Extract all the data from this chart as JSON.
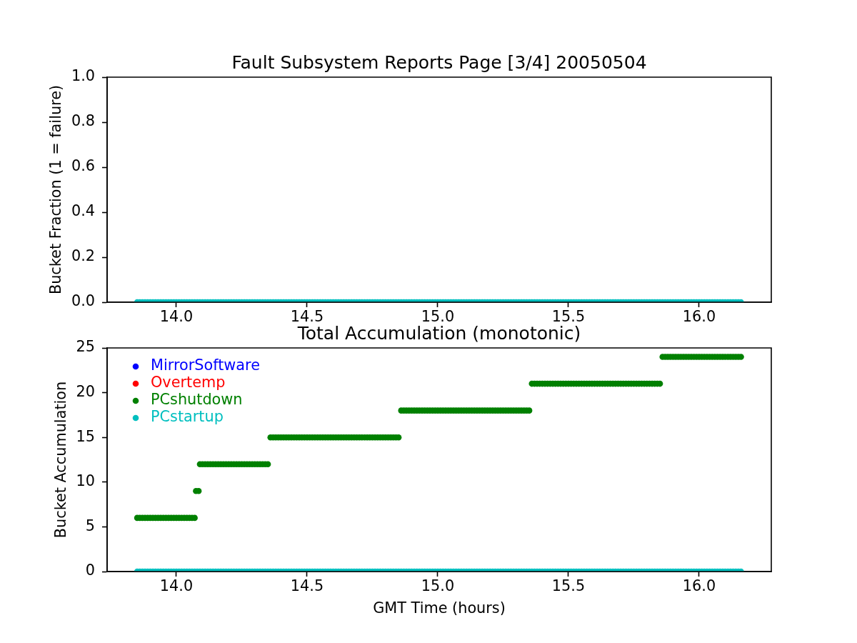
{
  "chart_data": [
    {
      "type": "scatter",
      "title": "Fault Subsystem Reports Page [3/4] 20050504",
      "ylabel": "Bucket Fraction (1 = failure)",
      "marker": "circle",
      "x": [
        13.85,
        13.86,
        13.87,
        13.88,
        13.89,
        13.9,
        13.91,
        13.92,
        13.93,
        13.94,
        13.95,
        13.96,
        13.97,
        13.98,
        13.99,
        14,
        14.01,
        14.02,
        14.03,
        14.04,
        14.05,
        14.06,
        14.07,
        14.08,
        14.09,
        14.1,
        14.11,
        14.12,
        14.13,
        14.14,
        14.15,
        14.16,
        14.17,
        14.18,
        14.19,
        14.2,
        14.21,
        14.22,
        14.23,
        14.24,
        14.25,
        14.26,
        14.27,
        14.28,
        14.29,
        14.3,
        14.31,
        14.32,
        14.33,
        14.34,
        14.35,
        14.36,
        14.37,
        14.38,
        14.39,
        14.4,
        14.41,
        14.42,
        14.43,
        14.44,
        14.45,
        14.46,
        14.47,
        14.48,
        14.49,
        14.5,
        14.51,
        14.52,
        14.53,
        14.54,
        14.55,
        14.56,
        14.57,
        14.58,
        14.59,
        14.6,
        14.61,
        14.62,
        14.63,
        14.64,
        14.65,
        14.66,
        14.67,
        14.68,
        14.69,
        14.7,
        14.71,
        14.72,
        14.73,
        14.74,
        14.75,
        14.76,
        14.77,
        14.78,
        14.79,
        14.8,
        14.81,
        14.82,
        14.83,
        14.84,
        14.85,
        14.86,
        14.87,
        14.88,
        14.89,
        14.9,
        14.91,
        14.92,
        14.93,
        14.94,
        14.95,
        14.96,
        14.97,
        14.98,
        14.99,
        15,
        15.01,
        15.02,
        15.03,
        15.04,
        15.05,
        15.06,
        15.07,
        15.08,
        15.09,
        15.1,
        15.11,
        15.12,
        15.13,
        15.14,
        15.15,
        15.16,
        15.17,
        15.18,
        15.19,
        15.2,
        15.21,
        15.22,
        15.23,
        15.24,
        15.25,
        15.26,
        15.27,
        15.28,
        15.29,
        15.3,
        15.31,
        15.32,
        15.33,
        15.34,
        15.35,
        15.36,
        15.37,
        15.38,
        15.39,
        15.4,
        15.41,
        15.42,
        15.43,
        15.44,
        15.45,
        15.46,
        15.47,
        15.48,
        15.49,
        15.5,
        15.51,
        15.52,
        15.53,
        15.54,
        15.55,
        15.56,
        15.57,
        15.58,
        15.59,
        15.6,
        15.61,
        15.62,
        15.63,
        15.64,
        15.65,
        15.66,
        15.67,
        15.68,
        15.69,
        15.7,
        15.71,
        15.72,
        15.73,
        15.74,
        15.75,
        15.76,
        15.77,
        15.78,
        15.79,
        15.8,
        15.81,
        15.82,
        15.83,
        15.84,
        15.85,
        15.86,
        15.87,
        15.88,
        15.89,
        15.9,
        15.91,
        15.92,
        15.93,
        15.94,
        15.95,
        15.96,
        15.97,
        15.98,
        15.99,
        16,
        16.01,
        16.02,
        16.03,
        16.04,
        16.05,
        16.06,
        16.07,
        16.08,
        16.09,
        16.1,
        16.11,
        16.12,
        16.13,
        16.14,
        16.15,
        16.16
      ],
      "xlim": [
        13.735,
        16.276
      ],
      "xticks": [
        {
          "value": 14,
          "label": "14.0"
        },
        {
          "value": 14.5,
          "label": "14.5"
        },
        {
          "value": 15,
          "label": "15.0"
        },
        {
          "value": 15.5,
          "label": "15.5"
        },
        {
          "value": 16,
          "label": "16.0"
        }
      ],
      "ylim": [
        0,
        1
      ],
      "yticks": [
        {
          "value": 0,
          "label": "0.0"
        },
        {
          "value": 0.2,
          "label": "0.2"
        },
        {
          "value": 0.4,
          "label": "0.4"
        },
        {
          "value": 0.6,
          "label": "0.6"
        },
        {
          "value": 0.8,
          "label": "0.8"
        },
        {
          "value": 1,
          "label": "1.0"
        }
      ],
      "series": [
        {
          "color": "#00bfbf",
          "values": [
            0,
            0,
            0,
            0,
            0,
            0,
            0,
            0,
            0,
            0,
            0,
            0,
            0,
            0,
            0,
            0,
            0,
            0,
            0,
            0,
            0,
            0,
            0,
            0,
            0,
            0,
            0,
            0,
            0,
            0,
            0,
            0,
            0,
            0,
            0,
            0,
            0,
            0,
            0,
            0,
            0,
            0,
            0,
            0,
            0,
            0,
            0,
            0,
            0,
            0,
            0,
            0,
            0,
            0,
            0,
            0,
            0,
            0,
            0,
            0,
            0,
            0,
            0,
            0,
            0,
            0,
            0,
            0,
            0,
            0,
            0,
            0,
            0,
            0,
            0,
            0,
            0,
            0,
            0,
            0,
            0,
            0,
            0,
            0,
            0,
            0,
            0,
            0,
            0,
            0,
            0,
            0,
            0,
            0,
            0,
            0,
            0,
            0,
            0,
            0,
            0,
            0,
            0,
            0,
            0,
            0,
            0,
            0,
            0,
            0,
            0,
            0,
            0,
            0,
            0,
            0,
            0,
            0,
            0,
            0,
            0,
            0,
            0,
            0,
            0,
            0,
            0,
            0,
            0,
            0,
            0,
            0,
            0,
            0,
            0,
            0,
            0,
            0,
            0,
            0,
            0,
            0,
            0,
            0,
            0,
            0,
            0,
            0,
            0,
            0,
            0,
            0,
            0,
            0,
            0,
            0,
            0,
            0,
            0,
            0,
            0,
            0,
            0,
            0,
            0,
            0,
            0,
            0,
            0,
            0,
            0,
            0,
            0,
            0,
            0,
            0,
            0,
            0,
            0,
            0,
            0,
            0,
            0,
            0,
            0,
            0,
            0,
            0,
            0,
            0,
            0,
            0,
            0,
            0,
            0,
            0,
            0,
            0,
            0,
            0,
            0,
            0,
            0,
            0,
            0,
            0,
            0,
            0,
            0,
            0,
            0,
            0,
            0,
            0,
            0,
            0,
            0,
            0,
            0,
            0,
            0,
            0,
            0,
            0,
            0,
            0,
            0,
            0,
            0,
            0,
            0,
            0
          ]
        }
      ]
    },
    {
      "type": "scatter",
      "title": "Total Accumulation (monotonic)",
      "xlabel": "GMT Time (hours)",
      "ylabel": "Bucket Accumulation",
      "marker": "circle",
      "legend": "top left",
      "x": [
        13.85,
        13.86,
        13.87,
        13.88,
        13.89,
        13.9,
        13.91,
        13.92,
        13.93,
        13.94,
        13.95,
        13.96,
        13.97,
        13.98,
        13.99,
        14,
        14.01,
        14.02,
        14.03,
        14.04,
        14.05,
        14.06,
        14.07,
        14.08,
        14.09,
        14.1,
        14.11,
        14.12,
        14.13,
        14.14,
        14.15,
        14.16,
        14.17,
        14.18,
        14.19,
        14.2,
        14.21,
        14.22,
        14.23,
        14.24,
        14.25,
        14.26,
        14.27,
        14.28,
        14.29,
        14.3,
        14.31,
        14.32,
        14.33,
        14.34,
        14.35,
        14.36,
        14.37,
        14.38,
        14.39,
        14.4,
        14.41,
        14.42,
        14.43,
        14.44,
        14.45,
        14.46,
        14.47,
        14.48,
        14.49,
        14.5,
        14.51,
        14.52,
        14.53,
        14.54,
        14.55,
        14.56,
        14.57,
        14.58,
        14.59,
        14.6,
        14.61,
        14.62,
        14.63,
        14.64,
        14.65,
        14.66,
        14.67,
        14.68,
        14.69,
        14.7,
        14.71,
        14.72,
        14.73,
        14.74,
        14.75,
        14.76,
        14.77,
        14.78,
        14.79,
        14.8,
        14.81,
        14.82,
        14.83,
        14.84,
        14.85,
        14.86,
        14.87,
        14.88,
        14.89,
        14.9,
        14.91,
        14.92,
        14.93,
        14.94,
        14.95,
        14.96,
        14.97,
        14.98,
        14.99,
        15,
        15.01,
        15.02,
        15.03,
        15.04,
        15.05,
        15.06,
        15.07,
        15.08,
        15.09,
        15.1,
        15.11,
        15.12,
        15.13,
        15.14,
        15.15,
        15.16,
        15.17,
        15.18,
        15.19,
        15.2,
        15.21,
        15.22,
        15.23,
        15.24,
        15.25,
        15.26,
        15.27,
        15.28,
        15.29,
        15.3,
        15.31,
        15.32,
        15.33,
        15.34,
        15.35,
        15.36,
        15.37,
        15.38,
        15.39,
        15.4,
        15.41,
        15.42,
        15.43,
        15.44,
        15.45,
        15.46,
        15.47,
        15.48,
        15.49,
        15.5,
        15.51,
        15.52,
        15.53,
        15.54,
        15.55,
        15.56,
        15.57,
        15.58,
        15.59,
        15.6,
        15.61,
        15.62,
        15.63,
        15.64,
        15.65,
        15.66,
        15.67,
        15.68,
        15.69,
        15.7,
        15.71,
        15.72,
        15.73,
        15.74,
        15.75,
        15.76,
        15.77,
        15.78,
        15.79,
        15.8,
        15.81,
        15.82,
        15.83,
        15.84,
        15.85,
        15.86,
        15.87,
        15.88,
        15.89,
        15.9,
        15.91,
        15.92,
        15.93,
        15.94,
        15.95,
        15.96,
        15.97,
        15.98,
        15.99,
        16,
        16.01,
        16.02,
        16.03,
        16.04,
        16.05,
        16.06,
        16.07,
        16.08,
        16.09,
        16.1,
        16.11,
        16.12,
        16.13,
        16.14,
        16.15,
        16.16
      ],
      "xlim": [
        13.735,
        16.276
      ],
      "xticks": [
        {
          "value": 14,
          "label": "14.0"
        },
        {
          "value": 14.5,
          "label": "14.5"
        },
        {
          "value": 15,
          "label": "15.0"
        },
        {
          "value": 15.5,
          "label": "15.5"
        },
        {
          "value": 16,
          "label": "16.0"
        }
      ],
      "ylim": [
        0,
        25
      ],
      "yticks": [
        0,
        5,
        10,
        15,
        20,
        25
      ],
      "series": [
        {
          "name": "MirrorSoftware",
          "color": "#0000ff",
          "values": [
            null,
            null,
            null,
            null,
            null,
            null,
            null,
            null,
            null,
            null,
            null,
            null,
            null,
            null,
            null,
            null,
            null,
            null,
            null,
            null,
            null,
            null,
            null,
            null,
            null,
            null,
            null,
            null,
            null,
            null,
            null,
            null,
            null,
            null,
            null,
            null,
            null,
            null,
            null,
            null,
            null,
            null,
            null,
            null,
            null,
            null,
            null,
            null,
            null,
            null,
            null,
            null,
            null,
            null,
            null,
            null,
            null,
            null,
            null,
            null,
            null,
            null,
            null,
            null,
            null,
            null,
            null,
            null,
            null,
            null,
            null,
            null,
            null,
            null,
            null,
            null,
            null,
            null,
            null,
            null,
            null,
            null,
            null,
            null,
            null,
            null,
            null,
            null,
            null,
            null,
            null,
            null,
            null,
            null,
            null,
            null,
            null,
            null,
            null,
            null,
            null,
            null,
            null,
            null,
            null,
            null,
            null,
            null,
            null,
            null,
            null,
            null,
            null,
            null,
            null,
            null,
            null,
            null,
            null,
            null,
            null,
            null,
            null,
            null,
            null,
            null,
            null,
            null,
            null,
            null,
            null,
            null,
            null,
            null,
            null,
            null,
            null,
            null,
            null,
            null,
            null,
            null,
            null,
            null,
            null,
            null,
            null,
            null,
            null,
            null,
            null,
            null,
            null,
            null,
            null,
            null,
            null,
            null,
            null,
            null,
            null,
            null,
            null,
            null,
            null,
            null,
            null,
            null,
            null,
            null,
            null,
            null,
            null,
            null,
            null,
            null,
            null,
            null,
            null,
            null,
            null,
            null,
            null,
            null,
            null,
            null,
            null,
            null,
            null,
            null,
            null,
            null,
            null,
            null,
            null,
            null,
            null,
            null,
            null,
            null,
            null,
            null,
            null,
            null,
            null,
            null,
            null,
            null,
            null,
            null,
            null,
            null,
            null,
            null,
            null,
            null,
            null,
            null,
            null,
            null,
            null,
            null,
            null,
            null,
            null,
            null,
            null,
            null,
            null,
            null,
            null,
            null
          ]
        },
        {
          "name": "Overtemp",
          "color": "#ff0000",
          "values": [
            null,
            null,
            null,
            null,
            null,
            null,
            null,
            null,
            null,
            null,
            null,
            null,
            null,
            null,
            null,
            null,
            null,
            null,
            null,
            null,
            null,
            null,
            null,
            null,
            null,
            null,
            null,
            null,
            null,
            null,
            null,
            null,
            null,
            null,
            null,
            null,
            null,
            null,
            null,
            null,
            null,
            null,
            null,
            null,
            null,
            null,
            null,
            null,
            null,
            null,
            null,
            null,
            null,
            null,
            null,
            null,
            null,
            null,
            null,
            null,
            null,
            null,
            null,
            null,
            null,
            null,
            null,
            null,
            null,
            null,
            null,
            null,
            null,
            null,
            null,
            null,
            null,
            null,
            null,
            null,
            null,
            null,
            null,
            null,
            null,
            null,
            null,
            null,
            null,
            null,
            null,
            null,
            null,
            null,
            null,
            null,
            null,
            null,
            null,
            null,
            null,
            null,
            null,
            null,
            null,
            null,
            null,
            null,
            null,
            null,
            null,
            null,
            null,
            null,
            null,
            null,
            null,
            null,
            null,
            null,
            null,
            null,
            null,
            null,
            null,
            null,
            null,
            null,
            null,
            null,
            null,
            null,
            null,
            null,
            null,
            null,
            null,
            null,
            null,
            null,
            null,
            null,
            null,
            null,
            null,
            null,
            null,
            null,
            null,
            null,
            null,
            null,
            null,
            null,
            null,
            null,
            null,
            null,
            null,
            null,
            null,
            null,
            null,
            null,
            null,
            null,
            null,
            null,
            null,
            null,
            null,
            null,
            null,
            null,
            null,
            null,
            null,
            null,
            null,
            null,
            null,
            null,
            null,
            null,
            null,
            null,
            null,
            null,
            null,
            null,
            null,
            null,
            null,
            null,
            null,
            null,
            null,
            null,
            null,
            null,
            null,
            null,
            null,
            null,
            null,
            null,
            null,
            null,
            null,
            null,
            null,
            null,
            null,
            null,
            null,
            null,
            null,
            null,
            null,
            null,
            null,
            null,
            null,
            null,
            null,
            null,
            null,
            null,
            null,
            null,
            null,
            null
          ]
        },
        {
          "name": "PCshutdown",
          "color": "#008000",
          "x": [
            13.85,
            13.86,
            13.87,
            13.88,
            13.89,
            13.9,
            13.91,
            13.92,
            13.93,
            13.94,
            13.95,
            13.96,
            13.97,
            13.98,
            13.99,
            14,
            14.01,
            14.02,
            14.03,
            14.04,
            14.05,
            14.06,
            14.07,
            14.075,
            14.085,
            14.09,
            14.1,
            14.11,
            14.12,
            14.13,
            14.14,
            14.15,
            14.16,
            14.17,
            14.18,
            14.19,
            14.2,
            14.21,
            14.22,
            14.23,
            14.24,
            14.25,
            14.26,
            14.27,
            14.28,
            14.29,
            14.3,
            14.31,
            14.32,
            14.33,
            14.34,
            14.35,
            14.36,
            14.37,
            14.38,
            14.39,
            14.4,
            14.41,
            14.42,
            14.43,
            14.44,
            14.45,
            14.46,
            14.47,
            14.48,
            14.49,
            14.5,
            14.51,
            14.52,
            14.53,
            14.54,
            14.55,
            14.56,
            14.57,
            14.58,
            14.59,
            14.6,
            14.61,
            14.62,
            14.63,
            14.64,
            14.65,
            14.66,
            14.67,
            14.68,
            14.69,
            14.7,
            14.71,
            14.72,
            14.73,
            14.74,
            14.75,
            14.76,
            14.77,
            14.78,
            14.79,
            14.8,
            14.81,
            14.82,
            14.83,
            14.84,
            14.85,
            14.86,
            14.87,
            14.88,
            14.89,
            14.9,
            14.91,
            14.92,
            14.93,
            14.94,
            14.95,
            14.96,
            14.97,
            14.98,
            14.99,
            15,
            15.01,
            15.02,
            15.03,
            15.04,
            15.05,
            15.06,
            15.07,
            15.08,
            15.09,
            15.1,
            15.11,
            15.12,
            15.13,
            15.14,
            15.15,
            15.16,
            15.17,
            15.18,
            15.19,
            15.2,
            15.21,
            15.22,
            15.23,
            15.24,
            15.25,
            15.26,
            15.27,
            15.28,
            15.29,
            15.3,
            15.31,
            15.32,
            15.33,
            15.34,
            15.35,
            15.36,
            15.37,
            15.38,
            15.39,
            15.4,
            15.41,
            15.42,
            15.43,
            15.44,
            15.45,
            15.46,
            15.47,
            15.48,
            15.49,
            15.5,
            15.51,
            15.52,
            15.53,
            15.54,
            15.55,
            15.56,
            15.57,
            15.58,
            15.59,
            15.6,
            15.61,
            15.62,
            15.63,
            15.64,
            15.65,
            15.66,
            15.67,
            15.68,
            15.69,
            15.7,
            15.71,
            15.72,
            15.73,
            15.74,
            15.75,
            15.76,
            15.77,
            15.78,
            15.79,
            15.8,
            15.81,
            15.82,
            15.83,
            15.84,
            15.85,
            15.86,
            15.87,
            15.88,
            15.89,
            15.9,
            15.91,
            15.92,
            15.93,
            15.94,
            15.95,
            15.96,
            15.97,
            15.98,
            15.99,
            16,
            16.01,
            16.02,
            16.03,
            16.04,
            16.05,
            16.06,
            16.07,
            16.08,
            16.09,
            16.1,
            16.11,
            16.12,
            16.13,
            16.14,
            16.15,
            16.16
          ],
          "values": [
            6,
            6,
            6,
            6,
            6,
            6,
            6,
            6,
            6,
            6,
            6,
            6,
            6,
            6,
            6,
            6,
            6,
            6,
            6,
            6,
            6,
            6,
            6,
            9,
            9,
            12,
            12,
            12,
            12,
            12,
            12,
            12,
            12,
            12,
            12,
            12,
            12,
            12,
            12,
            12,
            12,
            12,
            12,
            12,
            12,
            12,
            12,
            12,
            12,
            12,
            12,
            12,
            15,
            15,
            15,
            15,
            15,
            15,
            15,
            15,
            15,
            15,
            15,
            15,
            15,
            15,
            15,
            15,
            15,
            15,
            15,
            15,
            15,
            15,
            15,
            15,
            15,
            15,
            15,
            15,
            15,
            15,
            15,
            15,
            15,
            15,
            15,
            15,
            15,
            15,
            15,
            15,
            15,
            15,
            15,
            15,
            15,
            15,
            15,
            15,
            15,
            15,
            18,
            18,
            18,
            18,
            18,
            18,
            18,
            18,
            18,
            18,
            18,
            18,
            18,
            18,
            18,
            18,
            18,
            18,
            18,
            18,
            18,
            18,
            18,
            18,
            18,
            18,
            18,
            18,
            18,
            18,
            18,
            18,
            18,
            18,
            18,
            18,
            18,
            18,
            18,
            18,
            18,
            18,
            18,
            18,
            18,
            18,
            18,
            18,
            18,
            18,
            21,
            21,
            21,
            21,
            21,
            21,
            21,
            21,
            21,
            21,
            21,
            21,
            21,
            21,
            21,
            21,
            21,
            21,
            21,
            21,
            21,
            21,
            21,
            21,
            21,
            21,
            21,
            21,
            21,
            21,
            21,
            21,
            21,
            21,
            21,
            21,
            21,
            21,
            21,
            21,
            21,
            21,
            21,
            21,
            21,
            21,
            21,
            21,
            21,
            21,
            24,
            24,
            24,
            24,
            24,
            24,
            24,
            24,
            24,
            24,
            24,
            24,
            24,
            24,
            24,
            24,
            24,
            24,
            24,
            24,
            24,
            24,
            24,
            24,
            24,
            24,
            24,
            24,
            24,
            24,
            24
          ]
        },
        {
          "name": "PCstartup",
          "color": "#00bfbf",
          "values": [
            0,
            0,
            0,
            0,
            0,
            0,
            0,
            0,
            0,
            0,
            0,
            0,
            0,
            0,
            0,
            0,
            0,
            0,
            0,
            0,
            0,
            0,
            0,
            0,
            0,
            0,
            0,
            0,
            0,
            0,
            0,
            0,
            0,
            0,
            0,
            0,
            0,
            0,
            0,
            0,
            0,
            0,
            0,
            0,
            0,
            0,
            0,
            0,
            0,
            0,
            0,
            0,
            0,
            0,
            0,
            0,
            0,
            0,
            0,
            0,
            0,
            0,
            0,
            0,
            0,
            0,
            0,
            0,
            0,
            0,
            0,
            0,
            0,
            0,
            0,
            0,
            0,
            0,
            0,
            0,
            0,
            0,
            0,
            0,
            0,
            0,
            0,
            0,
            0,
            0,
            0,
            0,
            0,
            0,
            0,
            0,
            0,
            0,
            0,
            0,
            0,
            0,
            0,
            0,
            0,
            0,
            0,
            0,
            0,
            0,
            0,
            0,
            0,
            0,
            0,
            0,
            0,
            0,
            0,
            0,
            0,
            0,
            0,
            0,
            0,
            0,
            0,
            0,
            0,
            0,
            0,
            0,
            0,
            0,
            0,
            0,
            0,
            0,
            0,
            0,
            0,
            0,
            0,
            0,
            0,
            0,
            0,
            0,
            0,
            0,
            0,
            0,
            0,
            0,
            0,
            0,
            0,
            0,
            0,
            0,
            0,
            0,
            0,
            0,
            0,
            0,
            0,
            0,
            0,
            0,
            0,
            0,
            0,
            0,
            0,
            0,
            0,
            0,
            0,
            0,
            0,
            0,
            0,
            0,
            0,
            0,
            0,
            0,
            0,
            0,
            0,
            0,
            0,
            0,
            0,
            0,
            0,
            0,
            0,
            0,
            0,
            0,
            0,
            0,
            0,
            0,
            0,
            0,
            0,
            0,
            0,
            0,
            0,
            0,
            0,
            0,
            0,
            0,
            0,
            0,
            0,
            0,
            0,
            0,
            0,
            0,
            0,
            0,
            0,
            0,
            0,
            0
          ]
        }
      ]
    }
  ]
}
